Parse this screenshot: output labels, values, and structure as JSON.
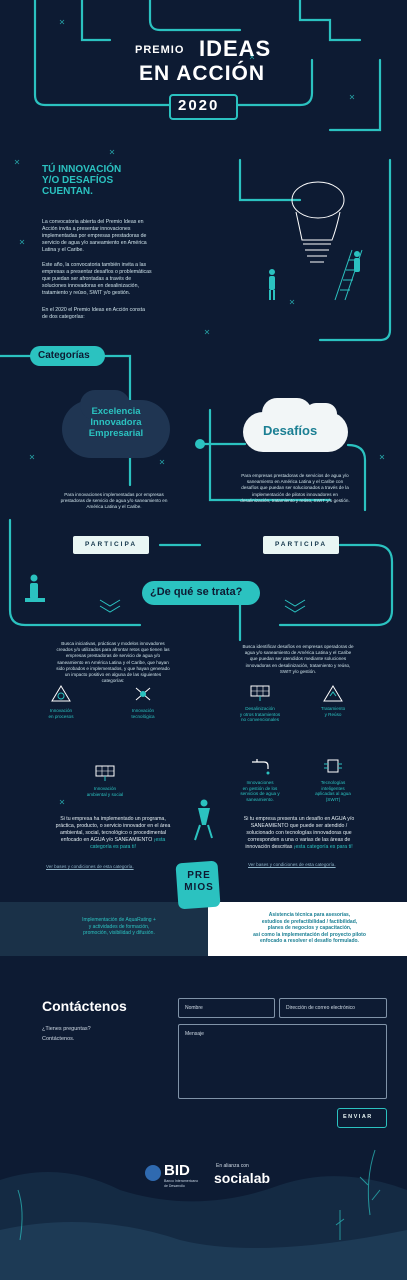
{
  "header": {
    "line1_small": "PREMIO",
    "line1_big": "IDEAS",
    "line2": "EN ACCIÓN",
    "year": "2020"
  },
  "intro": {
    "headline": [
      "TÚ INNOVACIÓN",
      "Y/O DESAFÍOS",
      "CUENTAN."
    ],
    "p1": [
      "La convocatoria abierta del Premio Ideas en",
      "Acción invita a presentar innovaciones",
      "implementadas por empresas prestadoras de",
      "servicio de agua y/o saneamiento en América",
      "Latina y el Caribe."
    ],
    "p2": [
      "Este año, la convocatoria también invita a las",
      "empresas a presentar desafíos o problemáticas",
      "que puedan ser afrontadas a través de",
      "soluciones innovadoras en desalinización,",
      "tratamiento y reúso, SWIT y/o gestión."
    ],
    "p3": [
      "En el 2020 el Premio Ideas en Acción consta",
      "de dos categorías:"
    ]
  },
  "categories": {
    "label": "Categorías",
    "left_title": [
      "Excelencia",
      "Innovadora",
      "Empresarial"
    ],
    "right_title": "Desafíos",
    "left_desc": [
      "Para innovaciones implementadas por empresas",
      "prestadoras de servicio de agua y/o saneamiento en",
      "América Latina y el Caribe."
    ],
    "right_desc": [
      "Para empresas prestadoras de servicios de agua y/o",
      "saneamiento en América Latina y el Caribe con",
      "desafíos que puedan ser solucionados a través de la",
      "implementación de pilotos innovadores en",
      "desalinización, tratamiento y reúso, SWIT y/o gestión."
    ],
    "participa_left": "PARTICIPA",
    "participa_right": "PARTICIPA"
  },
  "que_se_trata": {
    "label": "¿De qué se trata?",
    "left_text": [
      "Busca iniciativas, prácticas y modelos innovadores",
      "creados y/o utilizados para afrontar retos que tienen las",
      "empresas prestadoras de servicio de agua y/o",
      "saneamiento en América Latina y el Caribe, que hayan",
      "sido probados e implementados, y que hayan generado",
      "un impacto positivo en alguna de las siguientes",
      "categorías:"
    ],
    "right_text": [
      "Busca identificar desafíos en empresas operadoras de",
      "agua y/o saneamiento de América Latina y el Caribe",
      "que puedan ser atendidos mediante soluciones",
      "innovadoras en desalinización, tratamiento y reúso,",
      "SWIT y/o gestión."
    ],
    "left_cats": [
      {
        "icon": "process-icon",
        "label": [
          "Innovación",
          "en procesos"
        ]
      },
      {
        "icon": "tech-icon",
        "label": [
          "Innovación",
          "tecnológica"
        ]
      },
      {
        "icon": "solar-panel-icon",
        "label": [
          "Innovación",
          "ambiental y social"
        ]
      }
    ],
    "right_cats": [
      {
        "icon": "solar-panel-icon",
        "label": [
          "Desalinización",
          "y otros tratamientos",
          "no convencionales"
        ]
      },
      {
        "icon": "recycle-icon",
        "label": [
          "Tratamiento",
          "y Reúso"
        ]
      },
      {
        "icon": "faucet-icon",
        "label": [
          "Innovaciones",
          "en gestión de los",
          "servicios de agua y",
          "saneamiento."
        ]
      },
      {
        "icon": "sensor-icon",
        "label": [
          "Tecnologías",
          "inteligentes",
          "aplicadas al agua",
          "(SWIT)"
        ]
      }
    ],
    "left_apply": [
      "Si tu empresa ha implementado un programa,",
      "práctica, producto, o servicio innovador en el área",
      "ambiental, social, tecnológico o procedimental",
      "enfocado en AGUA y/o SANEAMIENTO"
    ],
    "left_apply_hl": [
      "¡esta",
      "categoría es para ti!"
    ],
    "right_apply": [
      "Si tu empresa presenta un desafío en AGUA y/o",
      "SANEAMIENTO que puede ser atendido /",
      "solucionado con tecnologías innovadoras que",
      "corresponden a una o varias de las áreas de",
      "innovación descritas"
    ],
    "right_apply_hl": "¡esta categoría es para ti!",
    "left_link": "Ver bases y condiciones de esta categoría.",
    "right_link": "Ver bases y condiciones de esta categoría."
  },
  "premios": {
    "badge": [
      "PRE",
      "MIOS"
    ],
    "left": [
      "Implementación de AquaRating +",
      "y actividades de formación,",
      "promoción, visibilidad y difusión."
    ],
    "right": [
      "Asistencia técnica para asesorías,",
      "estudios de prefactibilidad / factibilidad,",
      "planes de negocios y capacitación,",
      "así como la implementación del proyecto piloto",
      "enfocado a resolver el desafío formulado."
    ]
  },
  "contact": {
    "title": "Contáctenos",
    "q": "¿Tienes preguntas?",
    "sub": "Contáctenos.",
    "name_placeholder": "Nombre",
    "email_placeholder": "Dirección de correo electrónico",
    "message_placeholder": "Mensaje",
    "send": "ENVIAR"
  },
  "footer": {
    "bid": "BID",
    "bid_sub": [
      "Banco Interamericano",
      "de Desarrollo"
    ],
    "alliance": "En alianza con",
    "socialab": "socialab"
  },
  "colors": {
    "background": "#0d1b33",
    "pipe": "#2bc2c0",
    "panel": "#1a2c45",
    "white": "#ffffff"
  }
}
